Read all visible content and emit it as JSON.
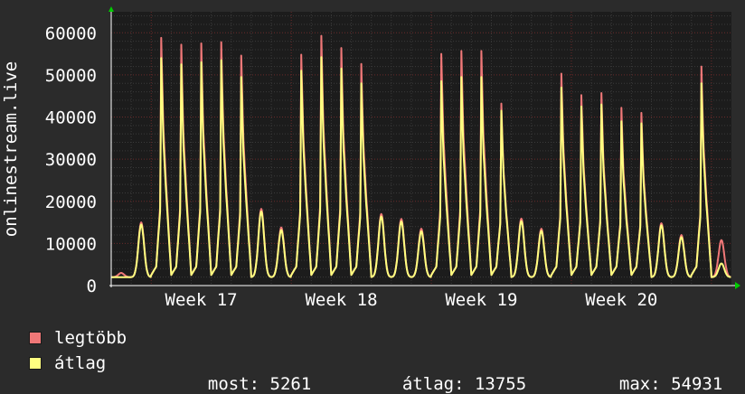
{
  "chart_data": {
    "type": "line",
    "title": "",
    "ylabel": "onlinestream.live",
    "xlabel": "",
    "ylim": [
      0,
      65000
    ],
    "y_ticks": [
      0,
      10000,
      20000,
      30000,
      40000,
      50000,
      60000
    ],
    "y_tick_labels": [
      "0",
      "10000",
      "20000",
      "30000",
      "40000",
      "50000",
      "60000"
    ],
    "x_ticks": [
      "Week 17",
      "Week 18",
      "Week 19",
      "Week 20"
    ],
    "grid": true,
    "days": 31,
    "daily_peaks_legtobb": [
      3000,
      15000,
      58800,
      57200,
      57500,
      57800,
      54600,
      18200,
      13800,
      54800,
      59300,
      56400,
      52600,
      17000,
      15800,
      13500,
      55000,
      55700,
      55700,
      43200,
      15900,
      13500,
      50300,
      45200,
      45700,
      42200,
      41000,
      14800,
      12000,
      52000,
      10800
    ],
    "daily_peaks_atlag": [
      2000,
      14500,
      54000,
      52500,
      53000,
      53500,
      49500,
      17600,
      13200,
      51000,
      54200,
      51500,
      48000,
      16400,
      15200,
      12900,
      48500,
      49500,
      49500,
      41500,
      15300,
      13000,
      47000,
      42500,
      43000,
      39000,
      38500,
      14300,
      11500,
      48000,
      5261
    ],
    "series": [
      {
        "name": "legtöbb",
        "color": "#f07878"
      },
      {
        "name": "átlag",
        "color": "#ffff80"
      }
    ]
  },
  "legend": {
    "items": [
      {
        "label": "legtöbb",
        "color": "#f07878"
      },
      {
        "label": "átlag",
        "color": "#ffff80"
      }
    ]
  },
  "stats": {
    "most_label": "most:",
    "most_value": "5261",
    "atlag_label": "átlag:",
    "atlag_value": "13755",
    "max_label": "max:",
    "max_value": "54931"
  }
}
